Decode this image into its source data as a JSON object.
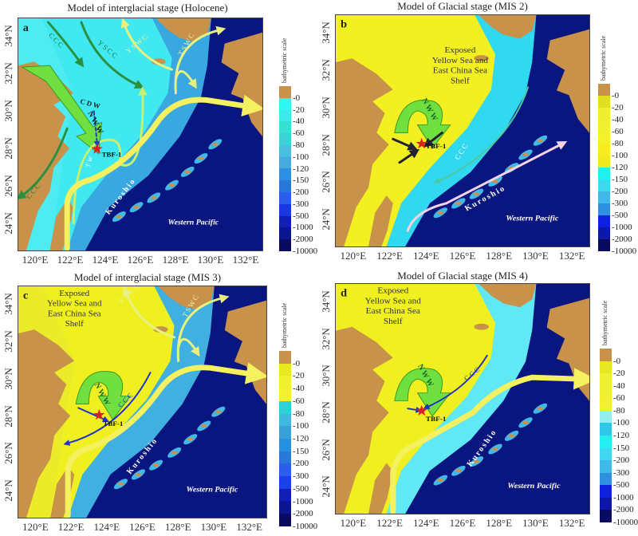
{
  "panels": [
    {
      "letter": "a",
      "title": "Model of interglacial stage (Holocene)",
      "labels": [
        "a",
        "CCC",
        "YSCC",
        "YSWC",
        "TSWC",
        "CDW",
        "NWW",
        "TW",
        "CCC",
        "TBF-1",
        "Kuroshio",
        "Western Pacific"
      ],
      "colorbar": {
        "label": "bathymetric scale",
        "ticks": [
          "-0",
          "-20",
          "-40",
          "-60",
          "-80",
          "-100",
          "-120",
          "-150",
          "-200",
          "-300",
          "-500",
          "-1000",
          "-2000",
          "-10000"
        ],
        "colors": [
          "#c8924a",
          "#2ff5f5",
          "#3ceaea",
          "#36e0d2",
          "#40d0d8",
          "#4ac0e0",
          "#48a8e0",
          "#2e90e0",
          "#2878d8",
          "#2a60e8",
          "#1838e0",
          "#1020b0",
          "#0a1590",
          "#0a0a60"
        ]
      },
      "shelf_colors": {
        "inner": "#40e8f0",
        "mid": "#3aa8e0",
        "deep": "#0a1680"
      }
    },
    {
      "letter": "b",
      "title": "Model of Glacial stage (MIS 2)",
      "labels": [
        "b",
        "Exposed\nYellow Sea and\nEast China Sea\nShelf",
        "NWW",
        "TBF-1",
        "CCC",
        "Kuroshio",
        "Western Pacific"
      ],
      "colorbar": {
        "label": "bathymetric scale",
        "ticks": [
          "-0",
          "-20",
          "-40",
          "-60",
          "-80",
          "-100",
          "-120",
          "-150",
          "-200",
          "-300",
          "-500",
          "-1000",
          "-2000",
          "-10000"
        ],
        "colors": [
          "#c8924a",
          "#e0e020",
          "#eeee30",
          "#f0f030",
          "#f4f02a",
          "#f8ec20",
          "#f0e820",
          "#20f0f0",
          "#40d8f0",
          "#40b8e8",
          "#3090e0",
          "#1020e0",
          "#0c18a8",
          "#0a0a60"
        ]
      },
      "shelf_colors": {
        "inner": "#f2f020",
        "mid": "#30d8f0",
        "deep": "#0a1680"
      }
    },
    {
      "letter": "c",
      "title": "Model of interglacial stage (MIS 3)",
      "labels": [
        "c",
        "Exposed\nYellow Sea and\nEast China Sea\nShelf",
        "YSWC",
        "TSWC",
        "NWW",
        "CCC",
        "TBF-1",
        "Kuroshio",
        "Western Pacific"
      ],
      "colorbar": {
        "label": "bathymetric scale",
        "ticks": [
          "-0",
          "-20",
          "-40",
          "-60",
          "-80",
          "-100",
          "-120",
          "-150",
          "-200",
          "-300",
          "-500",
          "-1000",
          "-2000",
          "-10000"
        ],
        "colors": [
          "#c8924a",
          "#e8e820",
          "#f0f030",
          "#f4f030",
          "#30d0d8",
          "#40b8e0",
          "#3aa0d8",
          "#2890e0",
          "#2a78d8",
          "#2a60e8",
          "#1a40e8",
          "#1020b0",
          "#0a1590",
          "#0a0a60"
        ]
      },
      "shelf_colors": {
        "inner": "#f0f020",
        "mid": "#40b0e0",
        "deep": "#0a1680"
      }
    },
    {
      "letter": "d",
      "title": "Model of Glacial stage (MIS 4)",
      "labels": [
        "d",
        "Exposed\nYellow Sea and\nEast China Sea\nShelf",
        "NWW",
        "CCC",
        "TBF-1",
        "Kuroshio",
        "Western Pacific"
      ],
      "colorbar": {
        "label": "bathymetric scale",
        "ticks": [
          "-0",
          "-20",
          "-40",
          "-60",
          "-80",
          "-100",
          "-120",
          "-150",
          "-200",
          "-300",
          "-500",
          "-1000",
          "-2000",
          "-10000"
        ],
        "colors": [
          "#c8924a",
          "#e8e820",
          "#f0f030",
          "#f0f030",
          "#f4f030",
          "#90f0f0",
          "#30c8e8",
          "#20f0f0",
          "#40d8f0",
          "#40b8e8",
          "#3090e0",
          "#1020e0",
          "#0c18a8",
          "#0a0a60"
        ]
      },
      "shelf_colors": {
        "inner": "#f0f020",
        "mid": "#60e8f4",
        "deep": "#0a1680"
      }
    }
  ],
  "axes": {
    "lon_ticks": [
      "120°E",
      "122°E",
      "124°E",
      "126°E",
      "128°E",
      "130°E",
      "132°E"
    ],
    "lat_ticks": [
      "24°N",
      "26°N",
      "28°N",
      "30°N",
      "32°N",
      "34°N"
    ]
  },
  "colors": {
    "land": "#c8924a",
    "kuroshio": "#f4f060",
    "nww": "#70e040",
    "site": "#e02020"
  }
}
